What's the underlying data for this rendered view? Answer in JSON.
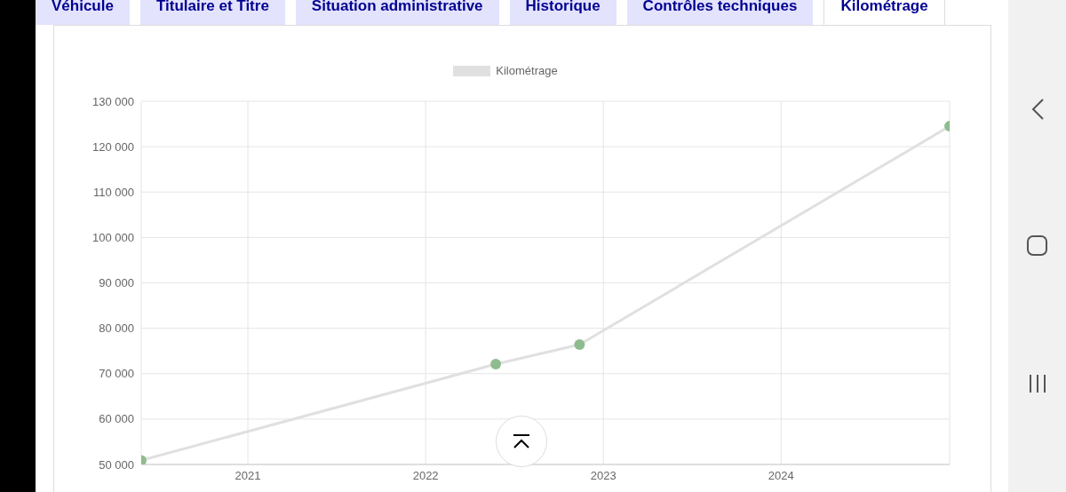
{
  "chart_data": {
    "type": "line",
    "annotations": [
      "Véhicule",
      "Titulaire et Titre",
      "Situation administrative",
      "Historique",
      "Contrôles techniques",
      "Kilométrage"
    ],
    "x": [
      "2020-05-27",
      "2022-05-25",
      "2022-11-13",
      "2024-12-12"
    ],
    "series": [
      {
        "name": "Kilométrage",
        "color": "#e0e0e0",
        "colors": [
          "#8fbc8f",
          "#8fbc8f",
          "#8fbc8f",
          "#8fbc8f"
        ],
        "values": [
          50900,
          72100,
          76400,
          124500
        ]
      }
    ],
    "xlim": [
      "2020-05-27",
      "2024-12-12"
    ],
    "xticks": [
      "2021",
      "2022",
      "2023",
      "2024"
    ],
    "ylim": [
      50000,
      130000
    ],
    "yticks": [
      {
        "value": 50000,
        "label": "50 000"
      },
      {
        "value": 60000,
        "label": "60 000"
      },
      {
        "value": 70000,
        "label": "70 000"
      },
      {
        "value": 80000,
        "label": "80 000"
      },
      {
        "value": 90000,
        "label": "90 000"
      },
      {
        "value": 100000,
        "label": "100 000"
      },
      {
        "value": 110000,
        "label": "110 000"
      },
      {
        "value": 120000,
        "label": "120 000"
      },
      {
        "value": 130000,
        "label": "130 000"
      }
    ],
    "grid": true,
    "legend": "top",
    "marker": "circle",
    "line_style": "solid"
  }
}
